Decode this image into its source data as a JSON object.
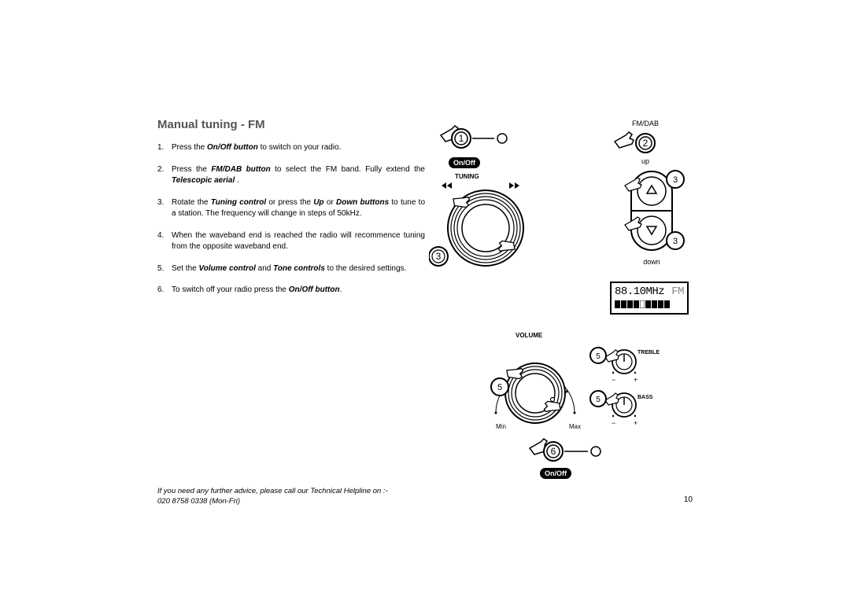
{
  "title": "Manual tuning - FM",
  "steps": [
    {
      "n": "1.",
      "html": "Press the <span class='bolditalic'>On/Off button</span> to switch on your radio."
    },
    {
      "n": "2.",
      "html": "Press the <span class='bolditalic'>FM/DAB button</span> to select the FM band. Fully extend the <span class='bolditalic'>Telescopic aerial</span> ."
    },
    {
      "n": "3.",
      "html": "Rotate the <span class='bolditalic'>Tuning control</span> or press the <span class='bolditalic'>Up</span> or <span class='bolditalic'>Down buttons</span>  to tune to a station. The frequency will change in steps of 50kHz."
    },
    {
      "n": "4.",
      "html": "When the waveband end is reached the radio will recommence tuning from the opposite waveband end."
    },
    {
      "n": "5.",
      "html": "Set the <span class='bolditalic'>Volume control</span> and <span class='bolditalic'>Tone controls</span> to the desired settings."
    },
    {
      "n": "6.",
      "html": "To switch off your radio press the <span class='bolditalic'>On/Off button</span>."
    }
  ],
  "footer_l1": "If you need any further advice, please call our Technical Helpline on :-",
  "footer_l2": "020 8758 0338 (Mon-Fri)",
  "page_number": "10",
  "labels": {
    "onoff": "On/Off",
    "tuning": "TUNING",
    "fmdab": "FM/DAB",
    "up": "up",
    "down": "down",
    "volume": "VOLUME",
    "min": "Min",
    "max": "Max",
    "treble": "TREBLE",
    "bass": "BASS"
  },
  "lcd": {
    "freq": "88.10MHz",
    "band": "FM",
    "bars": [
      1,
      1,
      1,
      1,
      0,
      1,
      1,
      1,
      1
    ]
  },
  "callouts": {
    "step1": "1",
    "step2": "2",
    "step3": "3",
    "step5": "5",
    "step6": "6"
  },
  "colors": {
    "line": "#000000",
    "bg": "#ffffff",
    "muted": "#888888"
  }
}
